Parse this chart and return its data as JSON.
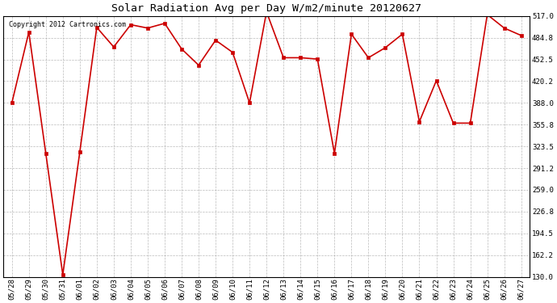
{
  "title": "Solar Radiation Avg per Day W/m2/minute 20120627",
  "copyright_text": "Copyright 2012 Cartronics.com",
  "line_color": "#cc0000",
  "marker_color": "#cc0000",
  "bg_color": "#ffffff",
  "grid_color": "#aaaaaa",
  "dates": [
    "05/28",
    "05/29",
    "05/30",
    "05/31",
    "06/01",
    "06/02",
    "06/03",
    "06/04",
    "06/05",
    "06/06",
    "06/07",
    "06/08",
    "06/09",
    "06/10",
    "06/11",
    "06/12",
    "06/13",
    "06/14",
    "06/15",
    "06/16",
    "06/17",
    "06/18",
    "06/19",
    "06/20",
    "06/21",
    "06/22",
    "06/23",
    "06/24",
    "06/25",
    "06/26",
    "06/27"
  ],
  "values": [
    388,
    493,
    313,
    133,
    315,
    500,
    471,
    504,
    499,
    506,
    468,
    444,
    481,
    463,
    388,
    523,
    455,
    455,
    453,
    313,
    490,
    455,
    470,
    490,
    360,
    421,
    358,
    358,
    519,
    499,
    488
  ],
  "ylim": [
    130,
    517
  ],
  "yticks": [
    130.0,
    162.2,
    194.5,
    226.8,
    259.0,
    291.2,
    323.5,
    355.8,
    388.0,
    420.2,
    452.5,
    484.8,
    517.0
  ],
  "title_fontsize": 9.5,
  "tick_fontsize": 6.5,
  "copyright_fontsize": 6
}
